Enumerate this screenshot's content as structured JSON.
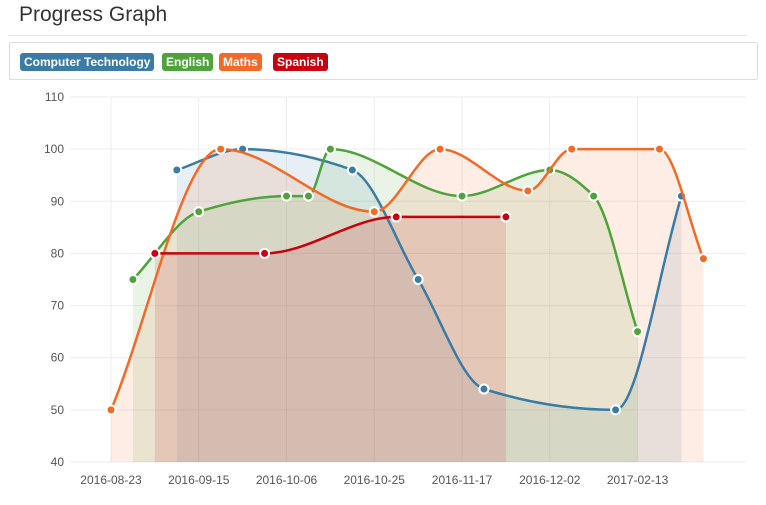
{
  "page": {
    "title": "Progress Graph"
  },
  "chart_data": {
    "type": "line",
    "title": "Progress Graph",
    "xlabel": "",
    "ylabel": "",
    "ylim": [
      40,
      110
    ],
    "y_ticks": [
      40,
      50,
      60,
      70,
      80,
      90,
      100,
      110
    ],
    "x_tick_labels": [
      "2016-08-23",
      "2016-09-15",
      "2016-10-06",
      "2016-10-25",
      "2016-11-17",
      "2016-12-02",
      "2017-02-13"
    ],
    "grid": true,
    "legend_position": "top-left",
    "smoothing": "curved",
    "fill": "area",
    "series": [
      {
        "name": "Computer Technology",
        "color": "#3a7ca5",
        "points": [
          [
            3,
            96
          ],
          [
            6,
            100
          ],
          [
            11,
            96
          ],
          [
            14,
            75
          ],
          [
            17,
            54
          ],
          [
            23,
            50
          ],
          [
            26,
            91
          ]
        ]
      },
      {
        "name": "English",
        "color": "#4ea33a",
        "points": [
          [
            1,
            75
          ],
          [
            4,
            88
          ],
          [
            8,
            91
          ],
          [
            9,
            91
          ],
          [
            10,
            100
          ],
          [
            16,
            91
          ],
          [
            20,
            96
          ],
          [
            22,
            91
          ],
          [
            24,
            65
          ]
        ]
      },
      {
        "name": "Maths",
        "color": "#f26a25",
        "points": [
          [
            0,
            50
          ],
          [
            5,
            100
          ],
          [
            12,
            88
          ],
          [
            15,
            100
          ],
          [
            19,
            92
          ],
          [
            21,
            100
          ],
          [
            25,
            100
          ],
          [
            27,
            79
          ]
        ]
      },
      {
        "name": "Spanish",
        "color": "#c9000d",
        "points": [
          [
            2,
            80
          ],
          [
            7,
            80
          ],
          [
            13,
            87
          ],
          [
            18,
            87
          ]
        ]
      }
    ]
  }
}
